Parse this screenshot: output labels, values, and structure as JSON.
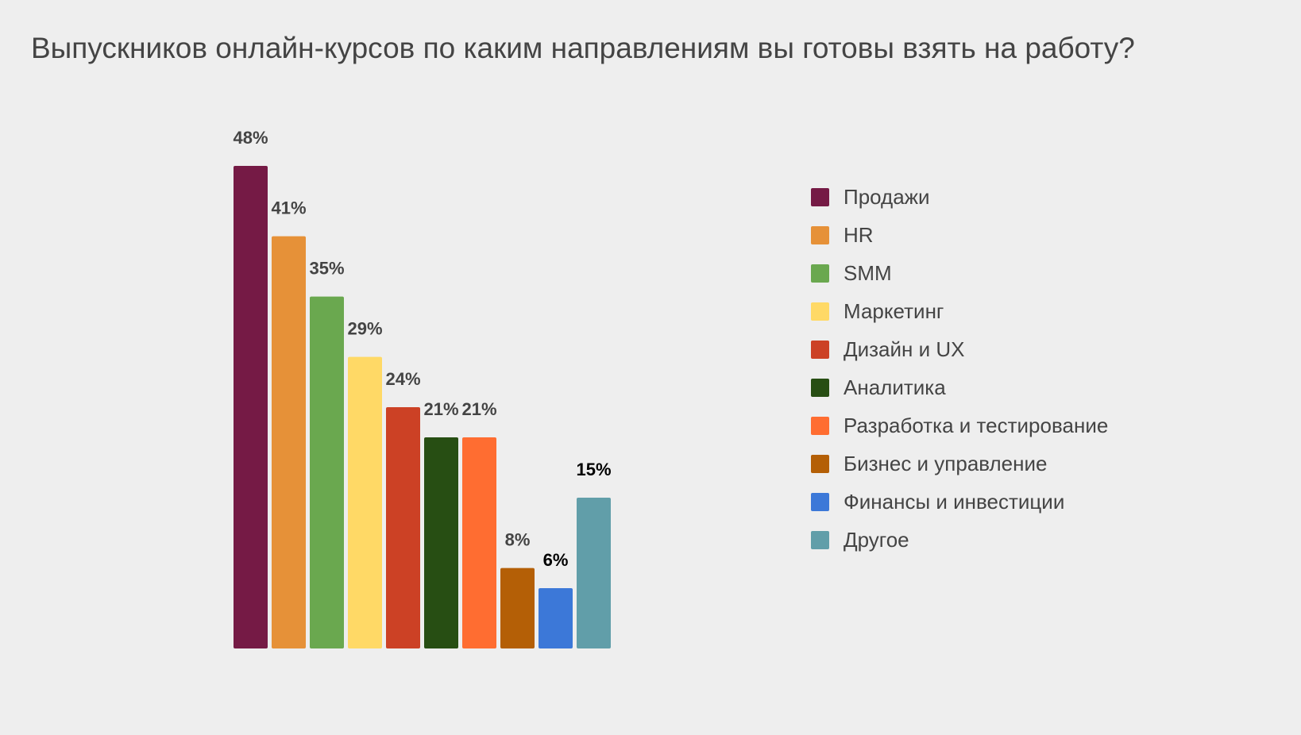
{
  "chart_data": {
    "type": "bar",
    "title": "Выпускников онлайн-курсов по каким направлениям вы готовы взять на работу?",
    "categories": [
      "Продажи",
      "HR",
      "SMM",
      "Маркетинг",
      "Дизайн и UX",
      "Аналитика",
      "Разработка и тестирование",
      "Бизнес и управление",
      "Финансы и инвестиции",
      "Другое"
    ],
    "values": [
      48,
      41,
      35,
      29,
      24,
      21,
      21,
      8,
      6,
      15
    ],
    "data_labels": [
      "48%",
      "41%",
      "35%",
      "29%",
      "24%",
      "21%",
      "21%",
      "8%",
      "6%",
      "15%"
    ],
    "unit": "%",
    "colors": [
      "#751a45",
      "#e69138",
      "#6aa84f",
      "#ffd966",
      "#cc4125",
      "#274e13",
      "#ff6d31",
      "#b45f06",
      "#3c78d8",
      "#619ea9"
    ],
    "label_colors": [
      "#444444",
      "#444444",
      "#444444",
      "#444444",
      "#444444",
      "#444444",
      "#444444",
      "#444444",
      "#000000",
      "#000000"
    ],
    "ylim": [
      0,
      48
    ],
    "xlabel": "",
    "ylabel": "",
    "grid": false,
    "legend": "right"
  }
}
